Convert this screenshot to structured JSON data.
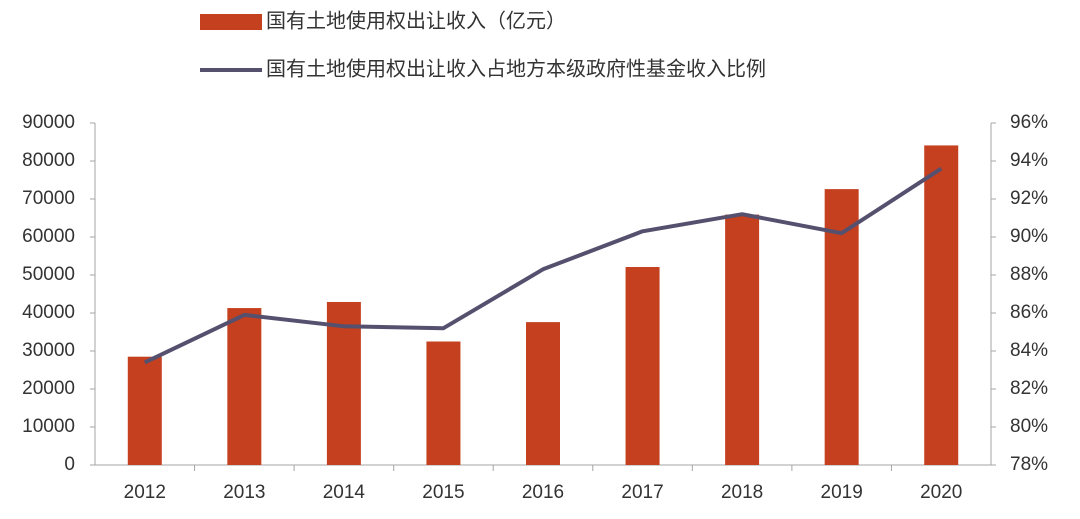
{
  "chart_data": {
    "type": "combo",
    "categories": [
      "2012",
      "2013",
      "2014",
      "2015",
      "2016",
      "2017",
      "2018",
      "2019",
      "2020"
    ],
    "series": [
      {
        "name": "国有土地使用权出让收入（亿元）",
        "type": "bar",
        "color": "#c4401f",
        "values": [
          28500,
          41300,
          42900,
          32500,
          37600,
          52100,
          65900,
          72600,
          84100
        ]
      },
      {
        "name": "国有土地使用权出让收入占地方本级政府性基金收入比例",
        "type": "line",
        "color": "#55506e",
        "axis": "y2",
        "values": [
          83.4,
          85.9,
          85.3,
          85.2,
          88.3,
          90.3,
          91.2,
          90.2,
          93.6
        ]
      }
    ],
    "ylim": [
      0,
      90000
    ],
    "yticks": [
      0,
      10000,
      20000,
      30000,
      40000,
      50000,
      60000,
      70000,
      80000,
      90000
    ],
    "y2lim": [
      78,
      96
    ],
    "y2ticks": [
      {
        "value": 78,
        "label": "78%"
      },
      {
        "value": 80,
        "label": "80%"
      },
      {
        "value": 82,
        "label": "82%"
      },
      {
        "value": 84,
        "label": "84%"
      },
      {
        "value": 86,
        "label": "86%"
      },
      {
        "value": 88,
        "label": "88%"
      },
      {
        "value": 90,
        "label": "90%"
      },
      {
        "value": 92,
        "label": "92%"
      },
      {
        "value": 94,
        "label": "94%"
      },
      {
        "value": 96,
        "label": "96%"
      }
    ],
    "grid": false,
    "legend": "top"
  }
}
